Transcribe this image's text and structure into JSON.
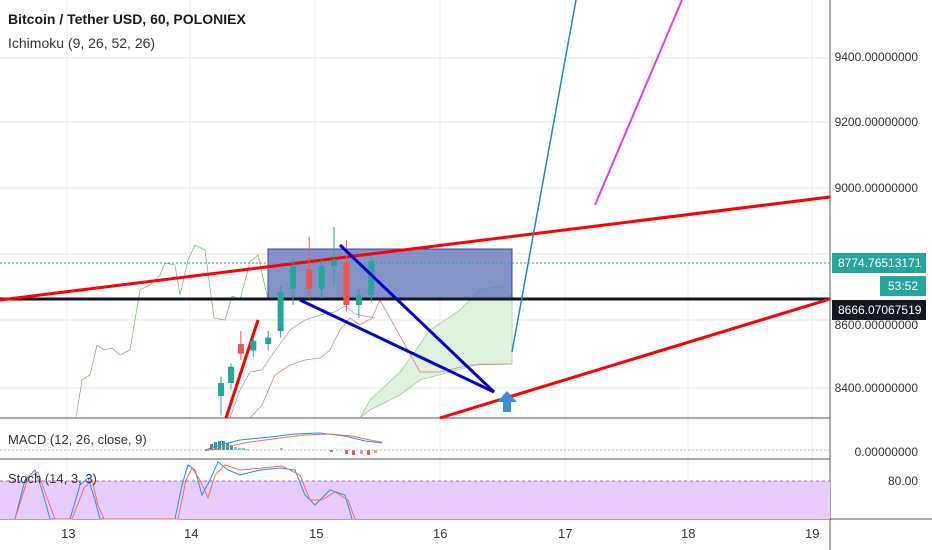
{
  "header": {
    "symbol_line": "Bitcoin / Tether USD, 60, POLONIEX",
    "indicator_line": "Ichimoku (9, 26, 52, 26)"
  },
  "panes": {
    "macd_label": "MACD (12, 26, close, 9)",
    "stoch_label": "Stoch (14, 3, 3)"
  },
  "axes": {
    "price_ticks": [
      "9400.00000000",
      "9200.00000000",
      "9000.00000000",
      "8400.00000000"
    ],
    "macd_tick": "0.00000000",
    "stoch_tick": "80.00",
    "x_ticks": [
      "13",
      "14",
      "15",
      "16",
      "17",
      "18",
      "19"
    ]
  },
  "tags": {
    "last_price": "8774.76513171",
    "countdown": "53:52",
    "line_price": "8666.07067519",
    "partial_price": "8600.00000000"
  },
  "colors": {
    "up": "#26a69a",
    "down": "#ef5350",
    "trendline": "#ff0000",
    "blue_line": "#0000cc",
    "rect_fill": "#5b6fb4",
    "teal": "#1b8eb8",
    "magenta": "#e040e0",
    "stoch_band": "#e6ccff",
    "last_price_tag": "#26a69a",
    "line_price_tag": "#131722",
    "arrow": "#3d8ed6"
  },
  "chart_data": {
    "type": "candlestick",
    "title": "Bitcoin / Tether USD, 60, POLONIEX",
    "ylim": [
      8350,
      9500
    ],
    "x_days": [
      13,
      14,
      15,
      16,
      17,
      18,
      19
    ],
    "approx_candles": [
      {
        "day": 14.24,
        "o": 8360,
        "h": 8420,
        "l": 8300,
        "c": 8400
      },
      {
        "day": 14.32,
        "o": 8400,
        "h": 8460,
        "l": 8380,
        "c": 8450
      },
      {
        "day": 14.4,
        "o": 8520,
        "h": 8560,
        "l": 8470,
        "c": 8490
      },
      {
        "day": 14.5,
        "o": 8500,
        "h": 8540,
        "l": 8480,
        "c": 8530
      },
      {
        "day": 14.62,
        "o": 8520,
        "h": 8560,
        "l": 8500,
        "c": 8540
      },
      {
        "day": 14.72,
        "o": 8560,
        "h": 8700,
        "l": 8540,
        "c": 8680
      },
      {
        "day": 14.82,
        "o": 8690,
        "h": 8780,
        "l": 8640,
        "c": 8760
      },
      {
        "day": 14.95,
        "o": 8750,
        "h": 8850,
        "l": 8660,
        "c": 8690
      },
      {
        "day": 15.05,
        "o": 8690,
        "h": 8780,
        "l": 8660,
        "c": 8760
      },
      {
        "day": 15.15,
        "o": 8760,
        "h": 8880,
        "l": 8700,
        "c": 8780
      },
      {
        "day": 15.25,
        "o": 8770,
        "h": 8840,
        "l": 8620,
        "c": 8640
      },
      {
        "day": 15.35,
        "o": 8640,
        "h": 8690,
        "l": 8600,
        "c": 8670
      },
      {
        "day": 15.45,
        "o": 8670,
        "h": 8790,
        "l": 8650,
        "c": 8775
      }
    ],
    "last_price": 8774.76513171,
    "horizontal_line": 8666.07067519
  }
}
